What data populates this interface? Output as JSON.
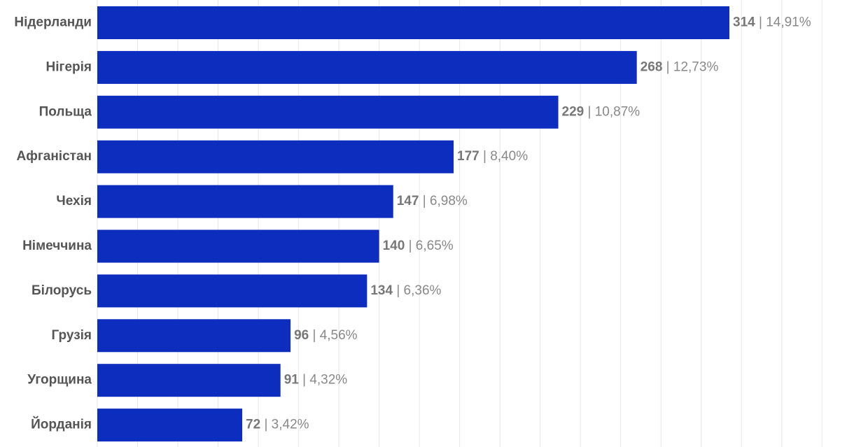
{
  "chart_data": {
    "type": "bar",
    "orientation": "horizontal",
    "categories": [
      "Нідерланди",
      "Нігерія",
      "Польща",
      "Афганістан",
      "Чехія",
      "Німеччина",
      "Білорусь",
      "Грузія",
      "Угорщина",
      "Йорданія"
    ],
    "values": [
      314,
      268,
      229,
      177,
      147,
      140,
      134,
      96,
      91,
      72
    ],
    "percent_labels": [
      "14,91%",
      "12,73%",
      "10,87%",
      "8,40%",
      "6,98%",
      "6,65%",
      "6,36%",
      "4,56%",
      "4,32%",
      "3,42%"
    ],
    "separator": "|",
    "title": "",
    "xlabel": "",
    "ylabel": "",
    "xlim": [
      0,
      360
    ],
    "grid": true,
    "legend": "none",
    "bar_color": "#0c2dbd",
    "label_color": "#555555",
    "value_color": "#888888"
  }
}
